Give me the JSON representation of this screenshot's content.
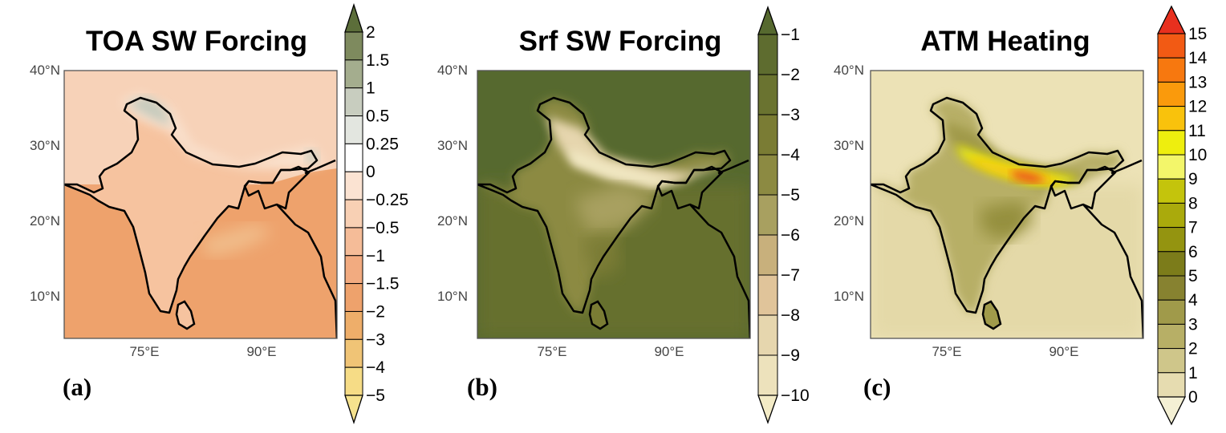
{
  "panels": [
    {
      "id": "a",
      "title": "TOA SW Forcing",
      "label": "(a)",
      "background": "#f6c9a8",
      "colorbar": {
        "labels": [
          "2",
          "1.5",
          "1",
          "0.5",
          "0.25",
          "0",
          "−0.25",
          "−0.5",
          "−1",
          "−1.5",
          "−2",
          "−3",
          "−4",
          "−5"
        ],
        "colors": [
          "#5c6e3a",
          "#7e8a5e",
          "#a4ad8e",
          "#c8cdbf",
          "#e3e6e0",
          "#ffffff",
          "#fbe3d2",
          "#f8d0b4",
          "#f5bc98",
          "#f2ab80",
          "#eea26c",
          "#eeae6a",
          "#f0c476",
          "#f6dc86",
          "#f6e28e"
        ]
      },
      "lat_ticks": [
        "40°N",
        "30°N",
        "20°N",
        "10°N"
      ],
      "lon_ticks": [
        "75°E",
        "90°E"
      ]
    },
    {
      "id": "b",
      "title": "Srf SW Forcing",
      "label": "(b)",
      "background": "#56692f",
      "colorbar": {
        "labels": [
          "−1",
          "−2",
          "−3",
          "−4",
          "−5",
          "−6",
          "−7",
          "−8",
          "−9",
          "−10"
        ],
        "colors": [
          "#56692f",
          "#5e6c2f",
          "#6a7330",
          "#7a7c34",
          "#8c8a42",
          "#a8a060",
          "#c8b07c",
          "#e0c49a",
          "#e6d6ae",
          "#ede2bc",
          "#f3ebc6"
        ]
      },
      "lat_ticks": [
        "40°N",
        "30°N",
        "20°N",
        "10°N"
      ],
      "lon_ticks": [
        "75°E",
        "90°E"
      ]
    },
    {
      "id": "c",
      "title": "ATM Heating",
      "label": "(c)",
      "background": "#ece2b6",
      "colorbar": {
        "labels": [
          "15",
          "14",
          "13",
          "12",
          "11",
          "10",
          "9",
          "8",
          "7",
          "6",
          "5",
          "4",
          "3",
          "2",
          "1",
          "0"
        ],
        "colors": [
          "#e8301e",
          "#f25a14",
          "#f7780f",
          "#fa9a0c",
          "#f9c20c",
          "#eeee0e",
          "#f3f66a",
          "#c4c40c",
          "#aaaa0c",
          "#949410",
          "#7c7c1a",
          "#878230",
          "#a09a4a",
          "#b7af66",
          "#cfc68a",
          "#e6dcb0",
          "#f4f0d4"
        ]
      },
      "lat_ticks": [
        "40°N",
        "30°N",
        "20°N",
        "10°N"
      ],
      "lon_ticks": [
        "75°E",
        "90°E"
      ]
    }
  ]
}
